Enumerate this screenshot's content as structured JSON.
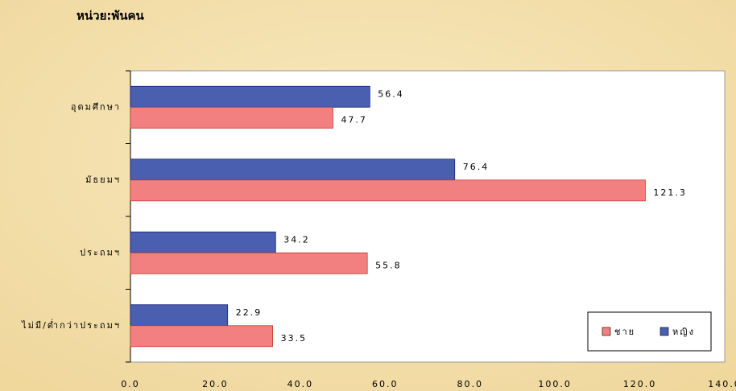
{
  "chart_data": {
    "type": "bar",
    "orientation": "horizontal",
    "title": "หน่วย:พันคน",
    "categories": [
      "อุดมศึกษา",
      "มัธยมฯ",
      "ประถมฯ",
      "ไม่มี/ต่ำกว่าประถมฯ"
    ],
    "series": [
      {
        "name": "ชาย",
        "color": "#f28080",
        "values": [
          47.7,
          121.3,
          55.8,
          33.5
        ]
      },
      {
        "name": "หญิง",
        "color": "#4a5fb0",
        "values": [
          56.4,
          76.4,
          34.2,
          22.9
        ]
      }
    ],
    "xlim": [
      0,
      140
    ],
    "xticks": [
      {
        "value": 0,
        "label": "0.0"
      },
      {
        "value": 20,
        "label": "20.0"
      },
      {
        "value": 40,
        "label": "40.0"
      },
      {
        "value": 60,
        "label": "60.0"
      },
      {
        "value": 80,
        "label": "80.0"
      },
      {
        "value": 100,
        "label": "100.0"
      },
      {
        "value": 120,
        "label": "120.0"
      },
      {
        "value": 140,
        "label": "140.0"
      }
    ],
    "grid": false,
    "legend": "lower right"
  }
}
